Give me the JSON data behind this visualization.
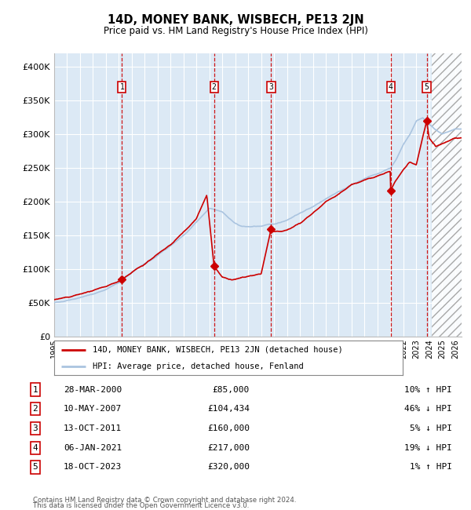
{
  "title": "14D, MONEY BANK, WISBECH, PE13 2JN",
  "subtitle": "Price paid vs. HM Land Registry's House Price Index (HPI)",
  "ylabel_ticks": [
    "£0",
    "£50K",
    "£100K",
    "£150K",
    "£200K",
    "£250K",
    "£300K",
    "£350K",
    "£400K"
  ],
  "ytick_values": [
    0,
    50000,
    100000,
    150000,
    200000,
    250000,
    300000,
    350000,
    400000
  ],
  "ylim": [
    0,
    420000
  ],
  "xlim_start": 1995.0,
  "xlim_end": 2026.5,
  "transactions": [
    {
      "num": 1,
      "date": "28-MAR-2000",
      "price": 85000,
      "year": 2000.24
    },
    {
      "num": 2,
      "date": "10-MAY-2007",
      "price": 104434,
      "year": 2007.36
    },
    {
      "num": 3,
      "date": "13-OCT-2011",
      "price": 160000,
      "year": 2011.78
    },
    {
      "num": 4,
      "date": "06-JAN-2021",
      "price": 217000,
      "year": 2021.02
    },
    {
      "num": 5,
      "date": "18-OCT-2023",
      "price": 320000,
      "year": 2023.8
    }
  ],
  "legend_property_label": "14D, MONEY BANK, WISBECH, PE13 2JN (detached house)",
  "legend_hpi_label": "HPI: Average price, detached house, Fenland",
  "footer_line1": "Contains HM Land Registry data © Crown copyright and database right 2024.",
  "footer_line2": "This data is licensed under the Open Government Licence v3.0.",
  "hpi_color": "#aac4e0",
  "property_color": "#cc0000",
  "bg_color": "#dce9f5",
  "grid_color": "#ffffff",
  "table_rows": [
    [
      "1",
      "28-MAR-2000",
      "£85,000",
      "10% ↑ HPI"
    ],
    [
      "2",
      "10-MAY-2007",
      "£104,434",
      "46% ↓ HPI"
    ],
    [
      "3",
      "13-OCT-2011",
      "£160,000",
      "5% ↓ HPI"
    ],
    [
      "4",
      "06-JAN-2021",
      "£217,000",
      "19% ↓ HPI"
    ],
    [
      "5",
      "18-OCT-2023",
      "£320,000",
      "1% ↑ HPI"
    ]
  ]
}
